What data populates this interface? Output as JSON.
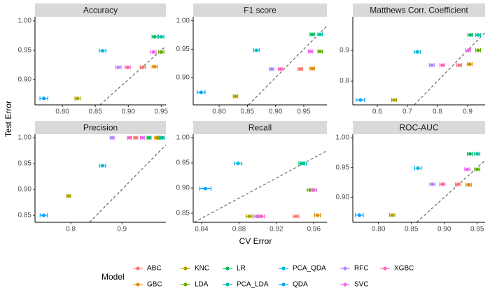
{
  "chart_data": [
    {
      "type": "scatter",
      "title": "Accuracy",
      "x": [
        0.922,
        0.94,
        0.823,
        0.95,
        0.94,
        0.95,
        0.861,
        0.772,
        0.885,
        0.938,
        0.899
      ],
      "values": [
        0.921,
        0.922,
        0.868,
        0.947,
        0.973,
        0.973,
        0.949,
        0.868,
        0.921,
        0.947,
        0.921
      ],
      "xerr": [
        0.004,
        0.004,
        0.004,
        0.004,
        0.004,
        0.004,
        0.005,
        0.006,
        0.004,
        0.004,
        0.004
      ],
      "xlim": [
        0.7585,
        0.957
      ],
      "ylim": [
        0.857,
        1.007
      ],
      "xticks": [
        {
          "value": 0.8,
          "label": "0.80"
        },
        0.85,
        {
          "value": 0.9,
          "label": "0.90"
        },
        0.95
      ],
      "yticks": [
        {
          "value": 0.9,
          "label": "0.90"
        },
        0.95,
        {
          "value": 1,
          "label": "1.00"
        }
      ]
    },
    {
      "type": "scatter",
      "title": "F1 score",
      "x": [
        0.944,
        0.965,
        0.829,
        0.979,
        0.965,
        0.979,
        0.866,
        0.768,
        0.893,
        0.962,
        0.909
      ],
      "values": [
        0.915,
        0.916,
        0.867,
        0.946,
        0.976,
        0.976,
        0.948,
        0.874,
        0.915,
        0.946,
        0.915
      ],
      "xerr": [
        0.004,
        0.004,
        0.004,
        0.004,
        0.004,
        0.004,
        0.005,
        0.007,
        0.004,
        0.004,
        0.004
      ],
      "xlim": [
        0.754,
        0.991
      ],
      "ylim": [
        0.852,
        1.007
      ],
      "xticks": [
        {
          "value": 0.8,
          "label": "0.80"
        },
        0.85,
        {
          "value": 0.9,
          "label": "0.90"
        },
        0.95
      ],
      "yticks": [
        {
          "value": 0.9,
          "label": "0.90"
        },
        0.95,
        {
          "value": 1,
          "label": "1.00"
        }
      ]
    },
    {
      "type": "scatter",
      "title": "Matthews Corr. Coefficient",
      "x": [
        0.872,
        0.907,
        0.656,
        0.935,
        0.909,
        0.935,
        0.733,
        0.544,
        0.781,
        0.902,
        0.816
      ],
      "values": [
        0.852,
        0.855,
        0.739,
        0.9,
        0.95,
        0.95,
        0.895,
        0.739,
        0.852,
        0.9,
        0.852
      ],
      "xerr": [
        0.008,
        0.008,
        0.008,
        0.008,
        0.008,
        0.008,
        0.01,
        0.014,
        0.008,
        0.008,
        0.008
      ],
      "xlim": [
        0.519,
        0.958
      ],
      "ylim": [
        0.723,
        1.009
      ],
      "xticks": [
        0.6,
        0.7,
        0.8,
        0.9
      ],
      "yticks": [
        0.8,
        0.9
      ]
    },
    {
      "type": "scatter",
      "title": "Precision",
      "x": [
        0.927,
        0.968,
        0.796,
        0.974,
        0.953,
        0.979,
        0.862,
        0.747,
        0.881,
        0.94,
        0.915
      ],
      "values": [
        1.0,
        1.0,
        0.8875,
        1.0,
        1.0,
        1.0,
        0.946,
        0.85,
        1.0,
        1.0,
        1.0
      ],
      "xerr": [
        0.004,
        0.004,
        0.004,
        0.004,
        0.004,
        0.004,
        0.006,
        0.007,
        0.004,
        0.004,
        0.004
      ],
      "xlim": [
        0.73,
        0.986
      ],
      "ylim": [
        0.8366,
        1.0067
      ],
      "xticks": [
        0.8,
        0.9
      ],
      "yticks": [
        0.85,
        {
          "value": 0.9,
          "label": "0.90"
        },
        0.95,
        {
          "value": 1,
          "label": "1.00"
        }
      ]
    },
    {
      "type": "scatter",
      "title": "Recall",
      "x": [
        0.941,
        0.964,
        0.891,
        0.956,
        0.947,
        0.949,
        0.879,
        0.844,
        0.899,
        0.96,
        0.904
      ],
      "values": [
        0.844,
        0.846,
        0.844,
        0.896,
        0.949,
        0.949,
        0.949,
        0.899,
        0.844,
        0.896,
        0.844
      ],
      "xerr": [
        0.003,
        0.003,
        0.003,
        0.003,
        0.003,
        0.003,
        0.004,
        0.006,
        0.003,
        0.003,
        0.003
      ],
      "xlim": [
        0.831,
        0.974
      ],
      "ylim": [
        0.832,
        1.0069
      ],
      "xticks": [
        0.84,
        0.88,
        0.92,
        0.96
      ],
      "yticks": [
        0.85,
        {
          "value": 0.9,
          "label": "0.90"
        },
        0.95,
        {
          "value": 1,
          "label": "1.00"
        }
      ]
    },
    {
      "type": "scatter",
      "title": "ROC-AUC",
      "x": [
        0.921,
        0.937,
        0.821,
        0.95,
        0.939,
        0.95,
        0.86,
        0.771,
        0.882,
        0.935,
        0.897
      ],
      "values": [
        0.922,
        0.921,
        0.87,
        0.947,
        0.973,
        0.973,
        0.949,
        0.87,
        0.922,
        0.947,
        0.922
      ],
      "xerr": [
        0.004,
        0.004,
        0.004,
        0.004,
        0.004,
        0.004,
        0.005,
        0.006,
        0.004,
        0.004,
        0.004
      ],
      "xlim": [
        0.761,
        0.962
      ],
      "ylim": [
        0.858,
        1.006
      ],
      "xticks": [
        {
          "value": 0.8,
          "label": "0.80"
        },
        0.85,
        {
          "value": 0.9,
          "label": "0.90"
        },
        0.95
      ],
      "yticks": [
        {
          "value": 0.9,
          "label": "0.90"
        },
        0.95,
        {
          "value": 1,
          "label": "1.00"
        }
      ]
    }
  ],
  "x_label": "CV Error",
  "y_label": "Test Error",
  "legend": {
    "title": "Model",
    "entries": [
      {
        "name": "ABC",
        "color": "#F8766D"
      },
      {
        "name": "GBC",
        "color": "#DB8E00"
      },
      {
        "name": "KNC",
        "color": "#AEA200"
      },
      {
        "name": "LDA",
        "color": "#64B200"
      },
      {
        "name": "LR",
        "color": "#00BD5C"
      },
      {
        "name": "PCA_LDA",
        "color": "#00C1A7"
      },
      {
        "name": "PCA_QDA",
        "color": "#00BADE"
      },
      {
        "name": "QDA",
        "color": "#00A6FF"
      },
      {
        "name": "RFC",
        "color": "#B385FF"
      },
      {
        "name": "SVC",
        "color": "#EF67EB"
      },
      {
        "name": "XGBC",
        "color": "#FF63B6"
      }
    ]
  }
}
